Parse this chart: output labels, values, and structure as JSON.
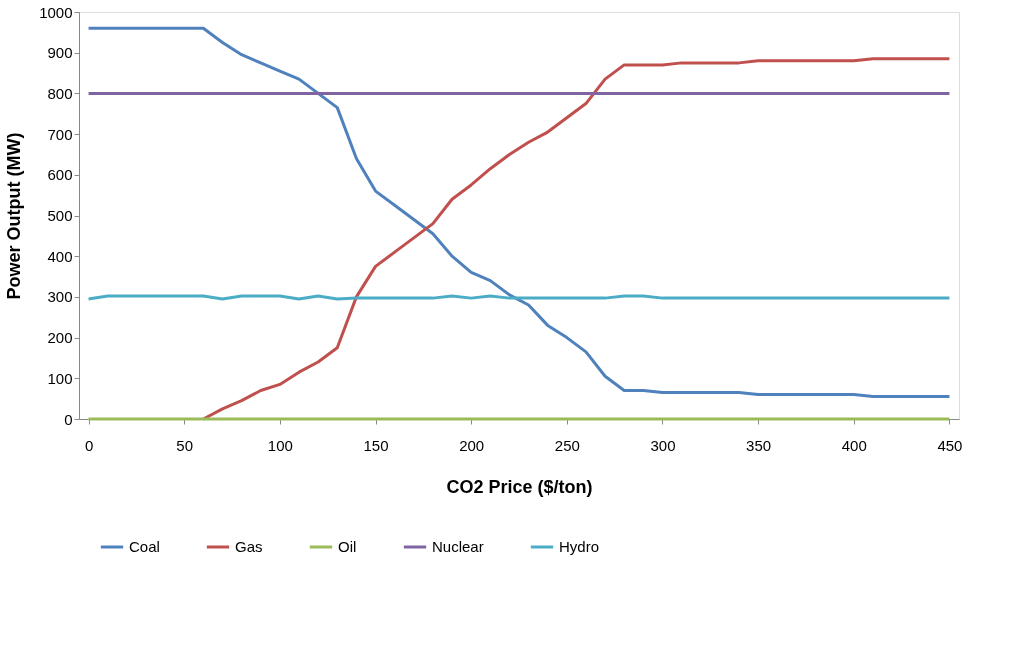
{
  "chart_data": {
    "type": "line",
    "xlabel": "CO2 Price ($/ton)",
    "ylabel": "Power Output (MW)",
    "x": [
      0,
      10,
      20,
      30,
      40,
      50,
      60,
      70,
      80,
      90,
      100,
      110,
      120,
      130,
      140,
      150,
      160,
      170,
      180,
      190,
      200,
      210,
      220,
      230,
      240,
      250,
      260,
      270,
      280,
      290,
      300,
      310,
      320,
      330,
      340,
      350,
      360,
      370,
      380,
      390,
      400,
      410,
      420,
      430,
      440,
      450
    ],
    "series": [
      {
        "name": "Coal",
        "color": "#4f81bd",
        "values": [
          960,
          960,
          960,
          960,
          960,
          960,
          960,
          925,
          895,
          875,
          855,
          835,
          800,
          765,
          640,
          560,
          525,
          490,
          455,
          400,
          360,
          340,
          305,
          280,
          230,
          200,
          165,
          105,
          70,
          70,
          65,
          65,
          65,
          65,
          65,
          60,
          60,
          60,
          60,
          60,
          60,
          55,
          55,
          55,
          55,
          55
        ]
      },
      {
        "name": "Gas",
        "color": "#c0504d",
        "values": [
          null,
          null,
          null,
          null,
          null,
          null,
          0,
          25,
          45,
          70,
          85,
          115,
          140,
          175,
          300,
          375,
          410,
          445,
          480,
          540,
          575,
          615,
          650,
          680,
          705,
          740,
          775,
          835,
          870,
          870,
          870,
          875,
          875,
          875,
          875,
          880,
          880,
          880,
          880,
          880,
          880,
          885,
          885,
          885,
          885,
          885
        ]
      },
      {
        "name": "Oil",
        "color": "#9bbb59",
        "values": [
          0,
          0,
          0,
          0,
          0,
          0,
          0,
          0,
          0,
          0,
          0,
          0,
          0,
          0,
          0,
          0,
          0,
          0,
          0,
          0,
          0,
          0,
          0,
          0,
          0,
          0,
          0,
          0,
          0,
          0,
          0,
          0,
          0,
          0,
          0,
          0,
          0,
          0,
          0,
          0,
          0,
          0,
          0,
          0,
          0,
          0
        ]
      },
      {
        "name": "Nuclear",
        "color": "#8064a2",
        "values": [
          800,
          800,
          800,
          800,
          800,
          800,
          800,
          800,
          800,
          800,
          800,
          800,
          800,
          800,
          800,
          800,
          800,
          800,
          800,
          800,
          800,
          800,
          800,
          800,
          800,
          800,
          800,
          800,
          800,
          800,
          800,
          800,
          800,
          800,
          800,
          800,
          800,
          800,
          800,
          800,
          800,
          800,
          800,
          800,
          800,
          800
        ]
      },
      {
        "name": "Hydro",
        "color": "#4bacc6",
        "values": [
          295,
          302,
          302,
          302,
          302,
          302,
          302,
          295,
          302,
          302,
          302,
          295,
          302,
          295,
          297,
          297,
          297,
          297,
          297,
          302,
          297,
          302,
          297,
          297,
          297,
          297,
          297,
          297,
          302,
          302,
          297,
          297,
          297,
          297,
          297,
          297,
          297,
          297,
          297,
          297,
          297,
          297,
          297,
          297,
          297,
          297
        ]
      }
    ],
    "xlim": [
      -5,
      455
    ],
    "xticks": [
      0,
      50,
      100,
      150,
      200,
      250,
      300,
      350,
      400,
      450
    ],
    "ylim": [
      0,
      1000
    ],
    "yticks": [
      0,
      100,
      200,
      300,
      400,
      500,
      600,
      700,
      800,
      900,
      1000
    ],
    "grid": false,
    "legend": "bottom",
    "marker": "none",
    "line_style": "solid"
  }
}
